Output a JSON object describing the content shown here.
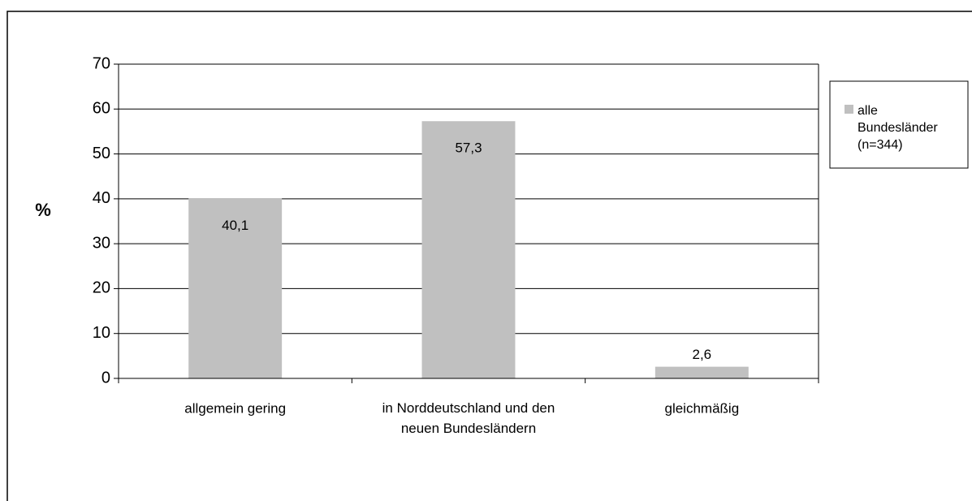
{
  "chart_data": {
    "type": "bar",
    "ylabel": "%",
    "categories": [
      "allgemein gering",
      "in Norddeutschland und den neuen Bundesländern",
      "gleichmäßig"
    ],
    "series": [
      {
        "name": "alle Bundesländer (n=344)",
        "color": "#c0c0c0",
        "values": [
          40.1,
          57.3,
          2.6
        ],
        "value_labels": [
          "40,1",
          "57,3",
          "2,6"
        ]
      }
    ],
    "ylim": [
      0,
      70
    ],
    "yticks": [
      0,
      10,
      20,
      30,
      40,
      50,
      60,
      70
    ],
    "grid": true,
    "legend": "right"
  }
}
